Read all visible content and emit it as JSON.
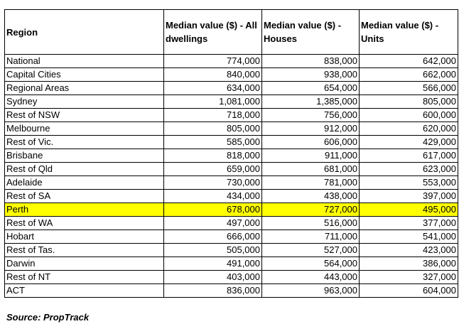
{
  "headers": [
    "Region",
    "Median value ($) - All dwellings",
    "Median value ($) - Houses",
    "Median value ($) - Units"
  ],
  "highlight_color": "#ffff00",
  "rows": [
    {
      "region": "National",
      "all": "774,000",
      "houses": "838,000",
      "units": "642,000"
    },
    {
      "region": "Capital Cities",
      "all": "840,000",
      "houses": "938,000",
      "units": "662,000"
    },
    {
      "region": "Regional Areas",
      "all": "634,000",
      "houses": "654,000",
      "units": "566,000"
    },
    {
      "region": "Sydney",
      "all": "1,081,000",
      "houses": "1,385,000",
      "units": "805,000"
    },
    {
      "region": "Rest of NSW",
      "all": "718,000",
      "houses": "756,000",
      "units": "600,000"
    },
    {
      "region": "Melbourne",
      "all": "805,000",
      "houses": "912,000",
      "units": "620,000"
    },
    {
      "region": "Rest of Vic.",
      "all": "585,000",
      "houses": "606,000",
      "units": "429,000"
    },
    {
      "region": "Brisbane",
      "all": "818,000",
      "houses": "911,000",
      "units": "617,000"
    },
    {
      "region": "Rest of Qld",
      "all": "659,000",
      "houses": "681,000",
      "units": "623,000"
    },
    {
      "region": "Adelaide",
      "all": "730,000",
      "houses": "781,000",
      "units": "553,000"
    },
    {
      "region": "Rest of SA",
      "all": "434,000",
      "houses": "438,000",
      "units": "397,000"
    },
    {
      "region": "Perth",
      "all": "678,000",
      "houses": "727,000",
      "units": "495,000",
      "highlighted": true
    },
    {
      "region": "Rest of WA",
      "all": "497,000",
      "houses": "516,000",
      "units": "377,000"
    },
    {
      "region": "Hobart",
      "all": "666,000",
      "houses": "711,000",
      "units": "541,000"
    },
    {
      "region": "Rest of Tas.",
      "all": "505,000",
      "houses": "527,000",
      "units": "423,000"
    },
    {
      "region": "Darwin",
      "all": "491,000",
      "houses": "564,000",
      "units": "386,000"
    },
    {
      "region": "Rest of NT",
      "all": "403,000",
      "houses": "443,000",
      "units": "327,000"
    },
    {
      "region": "ACT",
      "all": "836,000",
      "houses": "963,000",
      "units": "604,000"
    }
  ],
  "source": "Source: PropTrack"
}
